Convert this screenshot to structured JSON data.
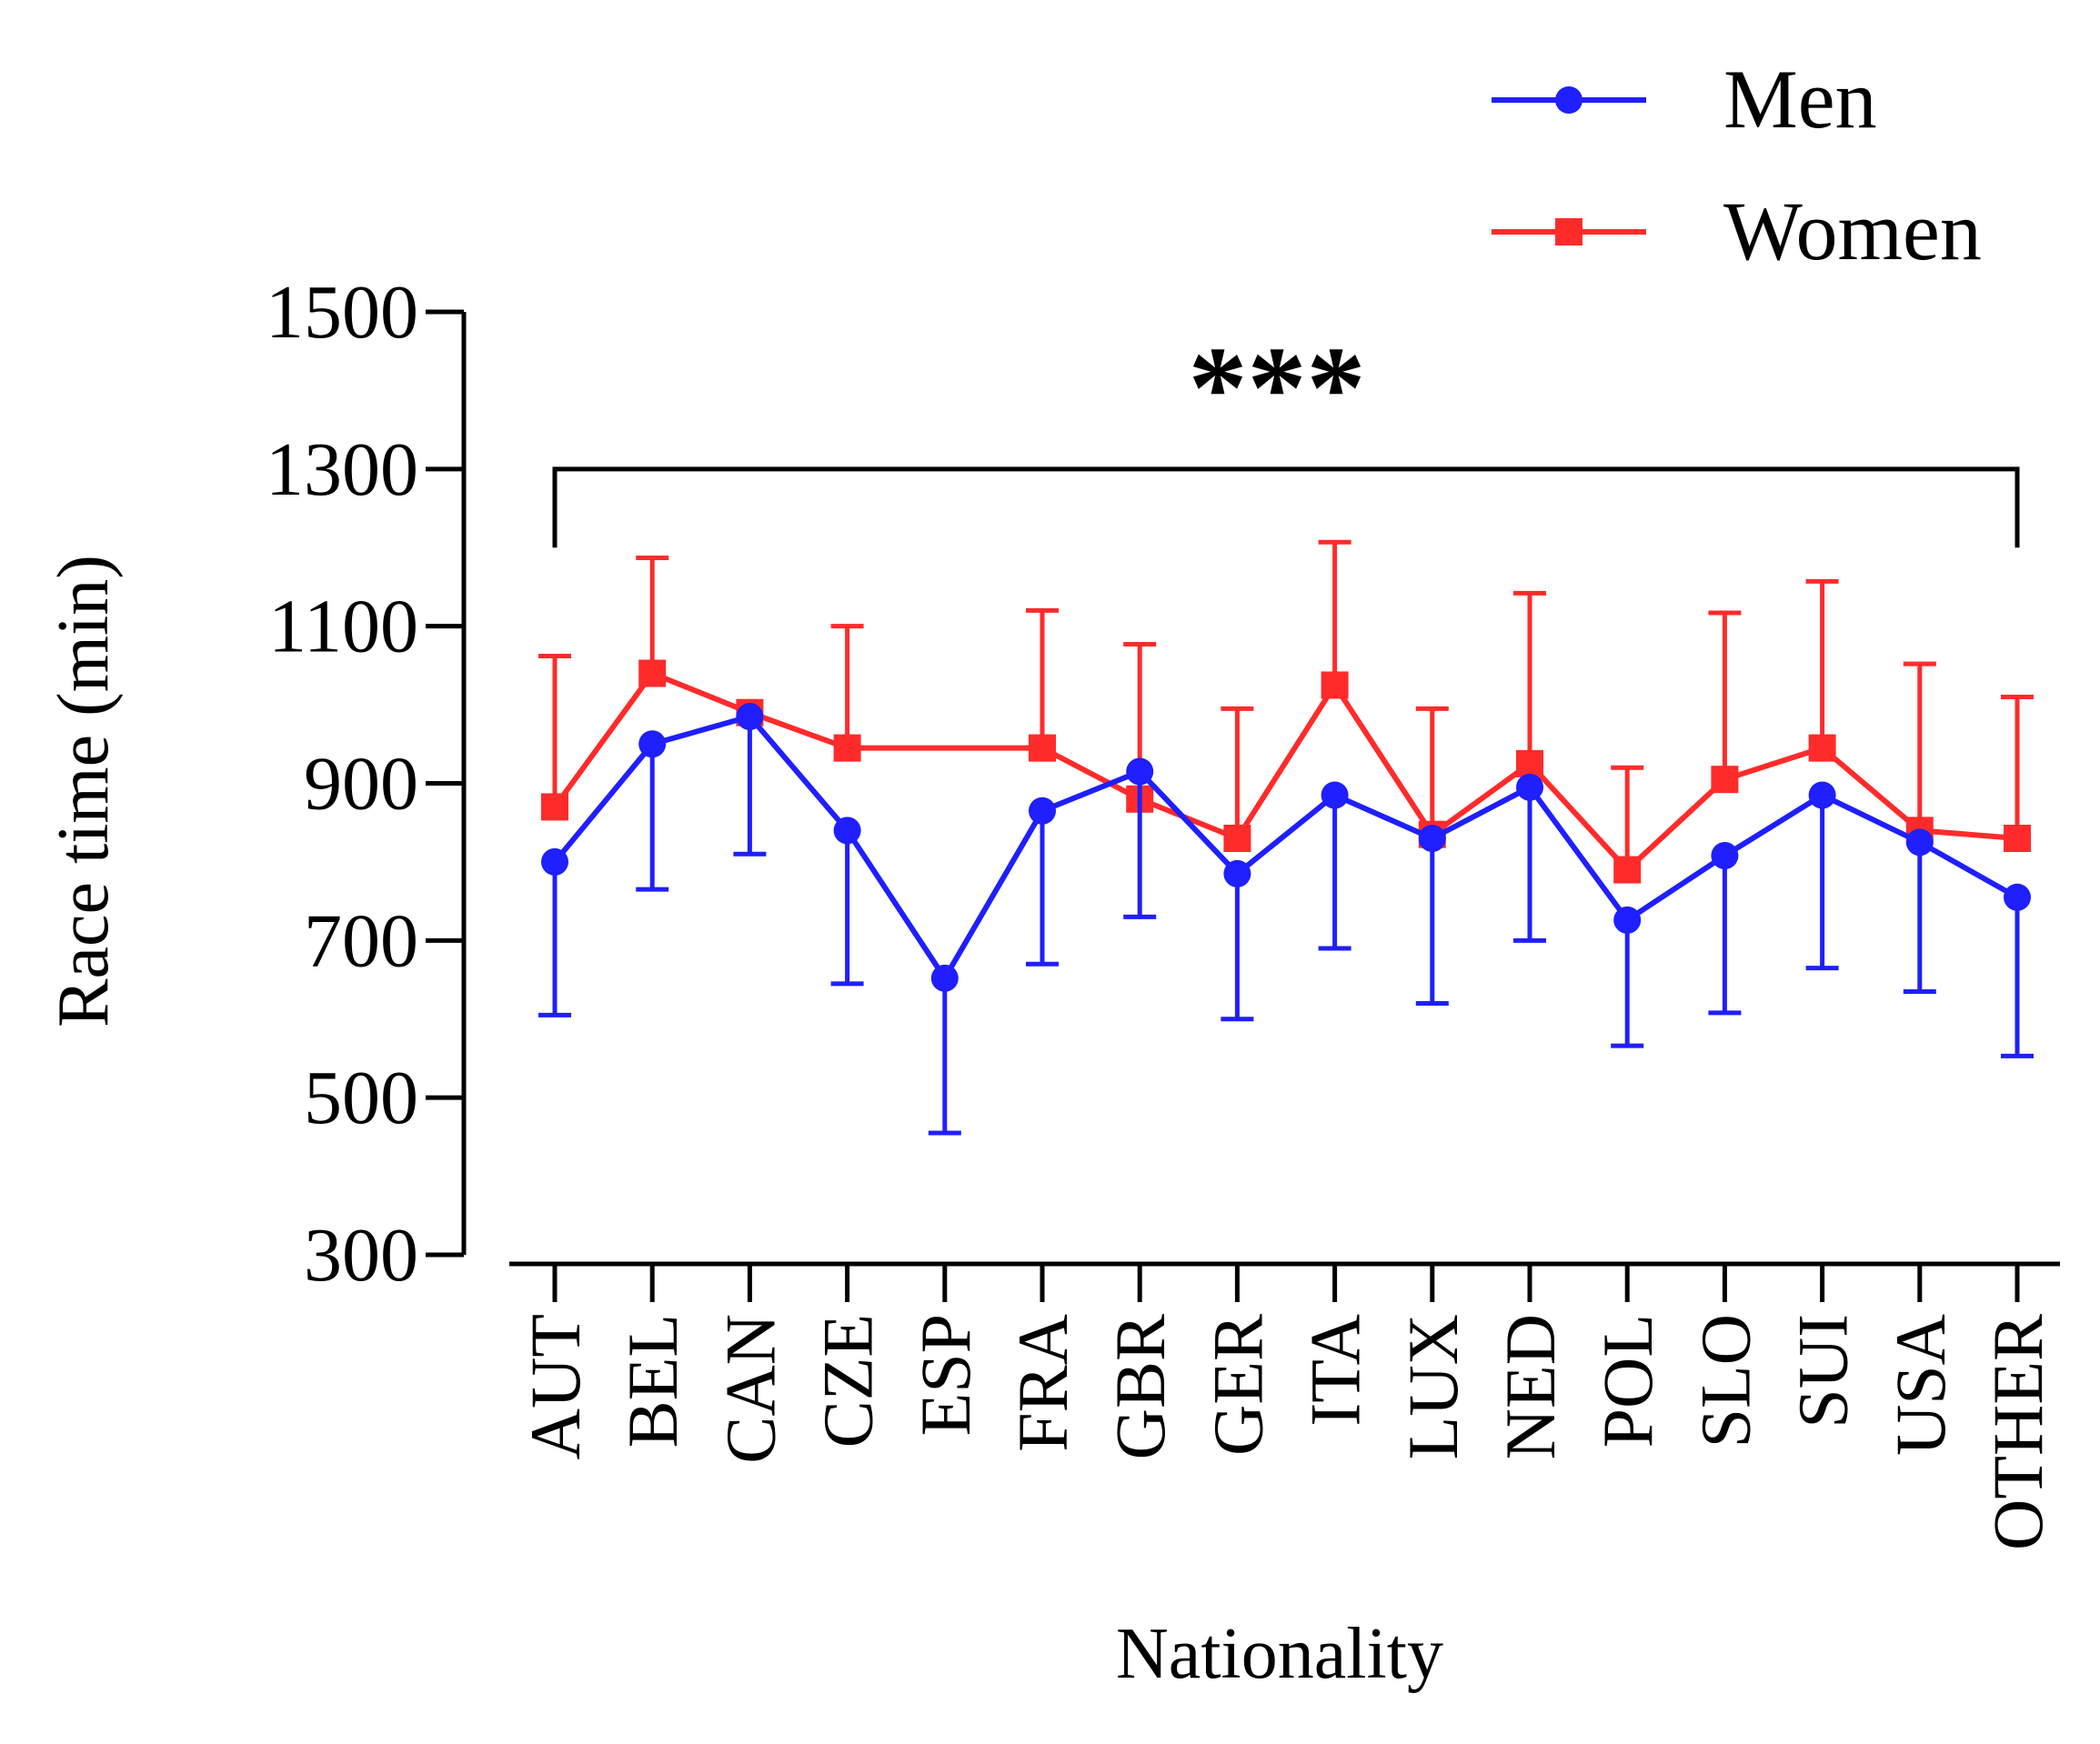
{
  "chart_data": {
    "type": "line",
    "title": "",
    "xlabel": "Nationality",
    "ylabel": "Race time (min)",
    "ylim": [
      300,
      1500
    ],
    "yticks": [
      300,
      500,
      700,
      900,
      1100,
      1300,
      1500
    ],
    "categories": [
      "AUT",
      "BEL",
      "CAN",
      "CZE",
      "ESP",
      "FRA",
      "GBR",
      "GER",
      "ITA",
      "LUX",
      "NED",
      "POL",
      "SLO",
      "SUI",
      "USA",
      "OTHER"
    ],
    "series": [
      {
        "name": "Men",
        "color": "#1f1fff",
        "marker": "circle",
        "error_direction": "down",
        "values": [
          800,
          950,
          985,
          840,
          652,
          865,
          915,
          785,
          885,
          830,
          895,
          726,
          808,
          885,
          825,
          755
        ],
        "errors": [
          195,
          185,
          175,
          195,
          197,
          195,
          185,
          185,
          195,
          210,
          195,
          160,
          200,
          220,
          190,
          202
        ]
      },
      {
        "name": "Women",
        "color": "#ff2b2b",
        "marker": "square",
        "error_direction": "up",
        "values": [
          870,
          1040,
          990,
          945,
          null,
          945,
          880,
          830,
          1025,
          835,
          925,
          790,
          905,
          945,
          840,
          830
        ],
        "errors": [
          192,
          147,
          0,
          155,
          null,
          175,
          197,
          165,
          182,
          160,
          217,
          130,
          212,
          212,
          212,
          180
        ]
      }
    ],
    "legend": {
      "position": "top-right",
      "entries": [
        "Men",
        "Women"
      ]
    },
    "annotation": {
      "text": "***",
      "from": "AUT",
      "to": "OTHER"
    }
  }
}
